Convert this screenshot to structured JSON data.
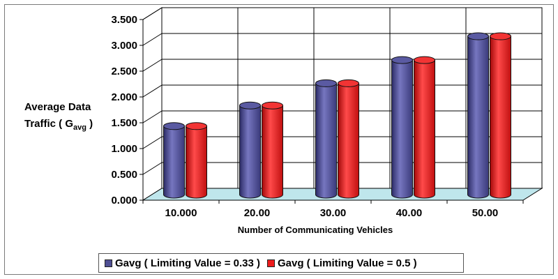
{
  "chart_data": {
    "type": "bar",
    "title": "",
    "ylabel_line1": "Average Data",
    "ylabel_line2_prefix": "Traffic ( G",
    "ylabel_sub": "avg",
    "ylabel_line2_suffix": " )",
    "xlabel": "Number of Communicating Vehicles",
    "categories": [
      "10.000",
      "20.00",
      "30.00",
      "40.00",
      "50.00"
    ],
    "y_ticks": [
      "0.000",
      "0.500",
      "1.000",
      "1.500",
      "2.000",
      "2.500",
      "3.000",
      "3.500"
    ],
    "ylim": [
      0,
      3.5
    ],
    "grid": true,
    "legend_position": "bottom",
    "series": [
      {
        "name": "Gavg ( Limiting Value = 0.33 )",
        "values": [
          1.3,
          1.7,
          2.13,
          2.58,
          3.04
        ],
        "color": "#4f4f93"
      },
      {
        "name": "Gavg ( Limiting Value = 0.5 )",
        "values": [
          1.3,
          1.7,
          2.13,
          2.58,
          3.04
        ],
        "color": "#ee1c1c"
      }
    ],
    "floor_color": "#bfe6ec"
  }
}
